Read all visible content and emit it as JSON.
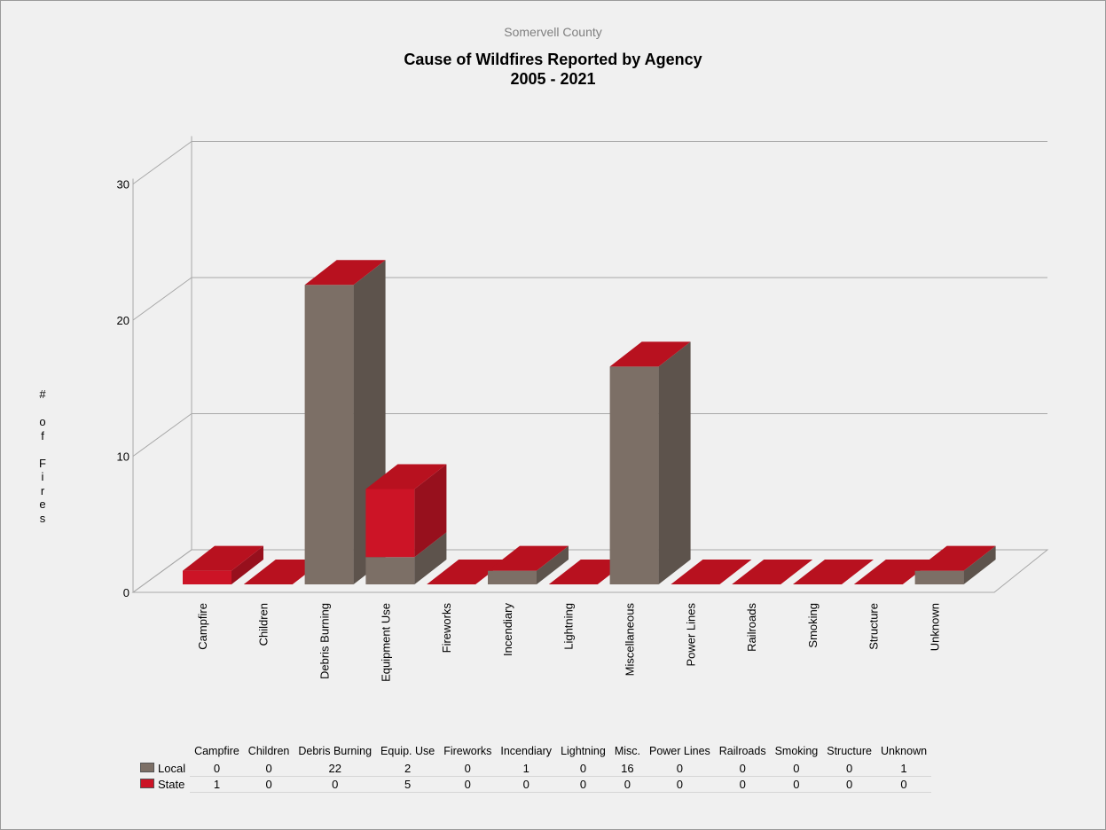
{
  "colors": {
    "local_front": "#7c6f66",
    "local_side": "#5d534c",
    "local_top": "#9a8e86",
    "state_front": "#cc1426",
    "state_side": "#97101d",
    "state_top": "#b8111f",
    "grid": "#a8a8a8",
    "background": "#f0f0f0"
  },
  "chart_data": {
    "type": "bar",
    "stacked": true,
    "three_d": true,
    "subtitle": "Somervell County",
    "title": "Cause of Wildfires Reported by Agency",
    "title_line2": "2005 - 2021",
    "ylabel": "# of Fires",
    "ylabel_vertical": "#\n\no\nf\n\nF\ni\nr\ne\ns",
    "ylim": [
      0,
      30
    ],
    "yticks": [
      0,
      10,
      20,
      30
    ],
    "grid": true,
    "categories": [
      "Campfire",
      "Children",
      "Debris Burning",
      "Equipment Use",
      "Fireworks",
      "Incendiary",
      "Lightning",
      "Miscellaneous",
      "Power Lines",
      "Railroads",
      "Smoking",
      "Structure",
      "Unknown"
    ],
    "table_headers": [
      "Campfire",
      "Children",
      "Debris Burning",
      "Equip. Use",
      "Fireworks",
      "Incendiary",
      "Lightning",
      "Misc.",
      "Power Lines",
      "Railroads",
      "Smoking",
      "Structure",
      "Unknown"
    ],
    "series": [
      {
        "name": "Local",
        "values": [
          0,
          0,
          22,
          2,
          0,
          1,
          0,
          16,
          0,
          0,
          0,
          0,
          1
        ]
      },
      {
        "name": "State",
        "values": [
          1,
          0,
          0,
          5,
          0,
          0,
          0,
          0,
          0,
          0,
          0,
          0,
          0
        ]
      }
    ],
    "legend_placement": "bottom-left (data table)"
  }
}
